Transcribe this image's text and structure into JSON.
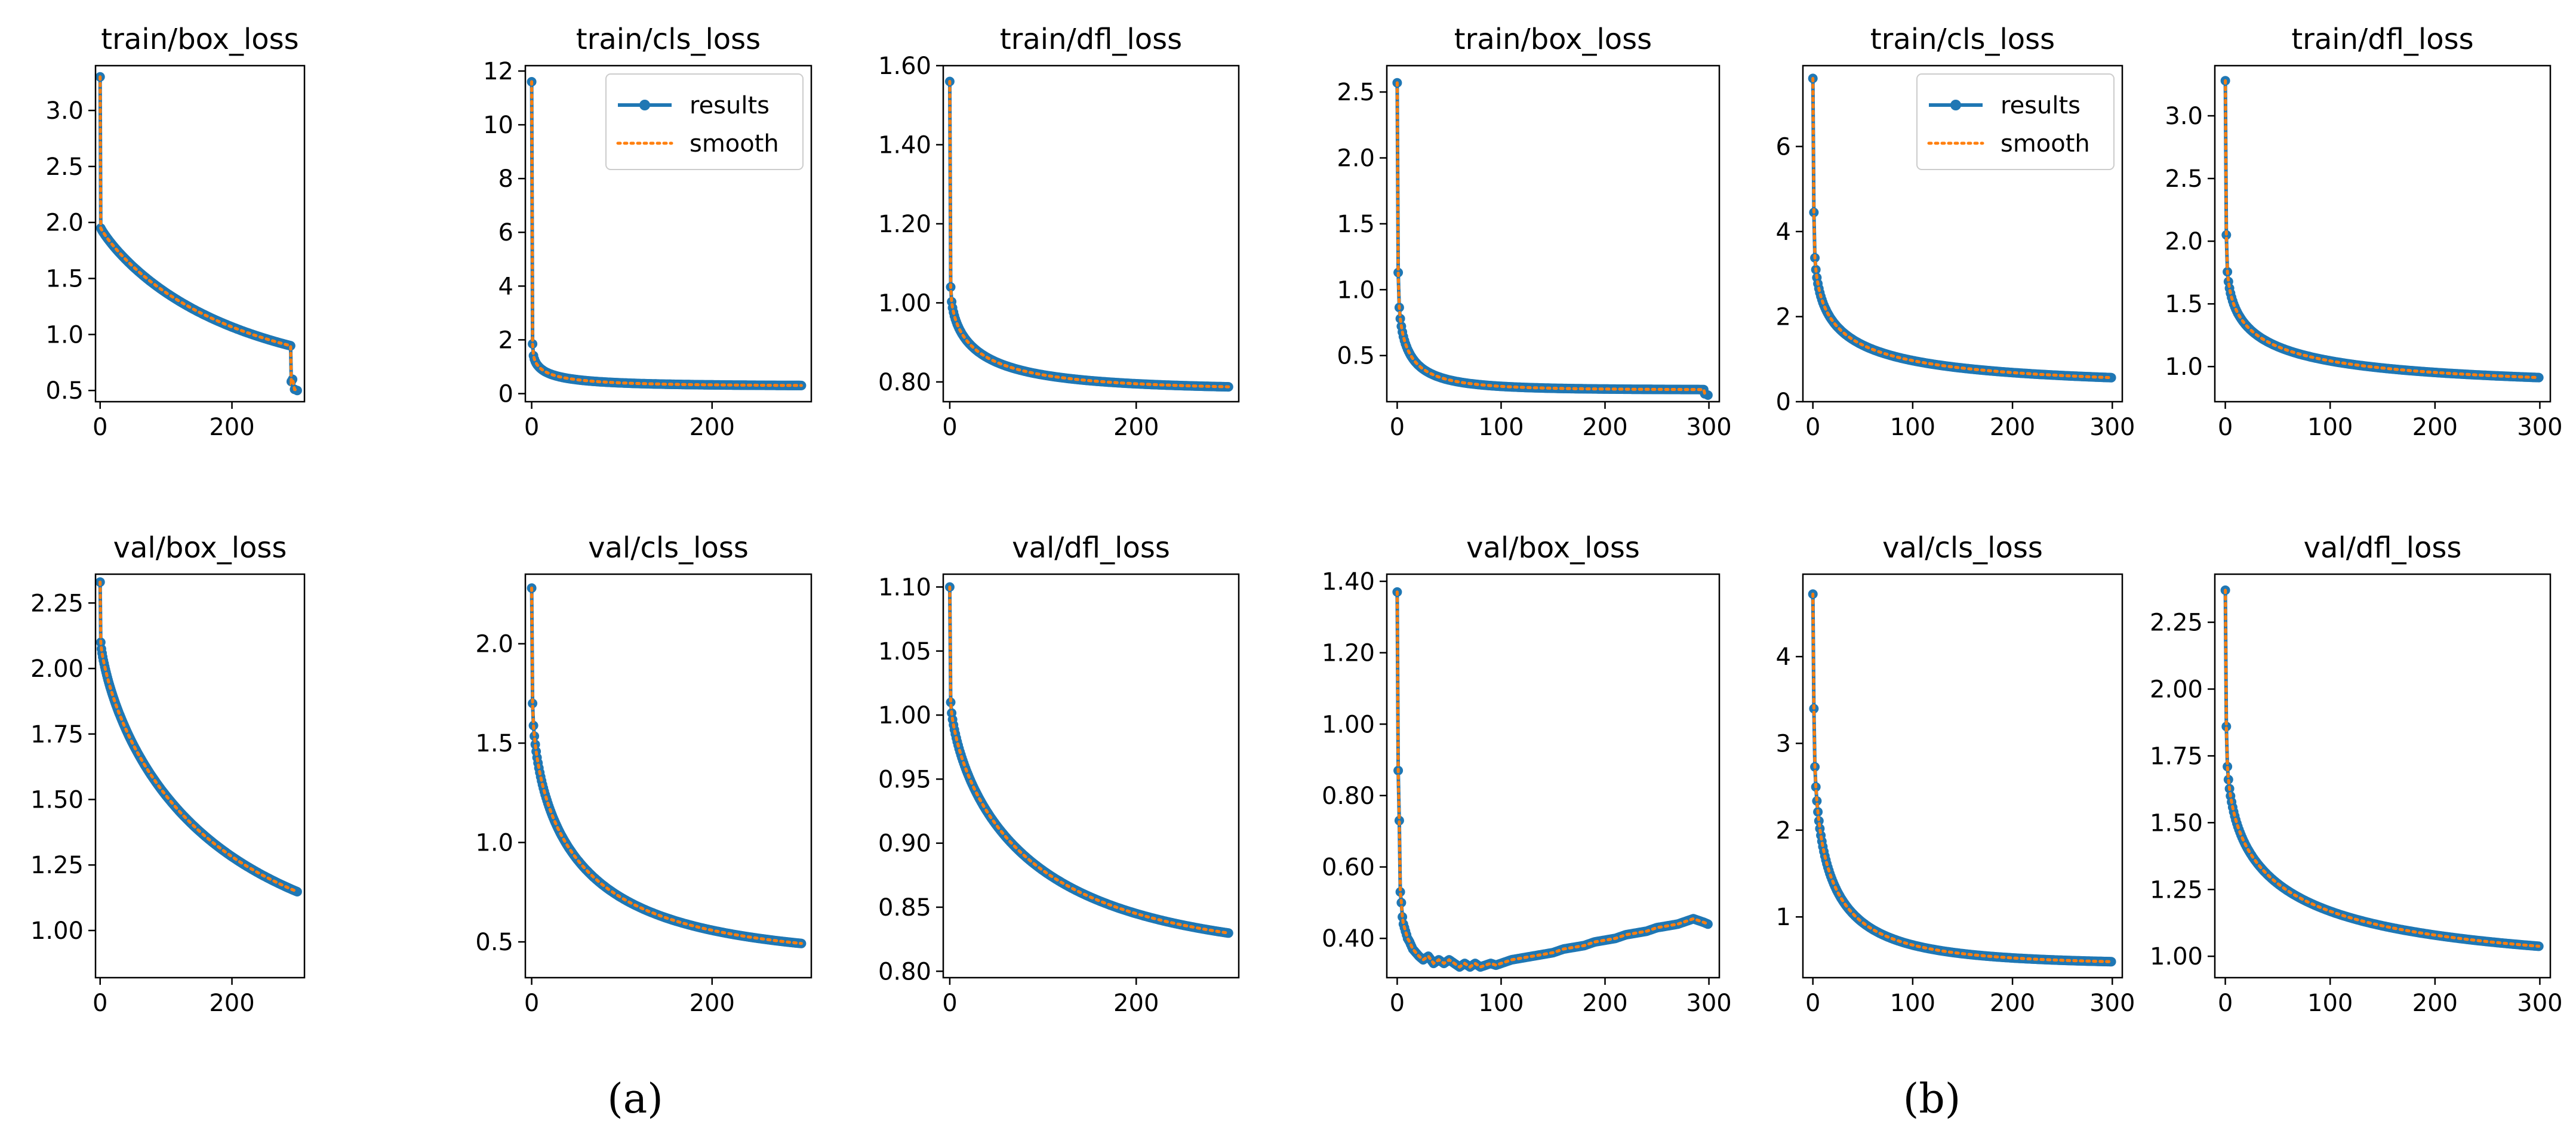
{
  "colors": {
    "results": "#1f77b4",
    "smooth": "#ff7f0e",
    "axis": "#000000",
    "background": "#ffffff"
  },
  "legend_labels": {
    "results": "results",
    "smooth": "smooth"
  },
  "captions": [
    "(a)",
    "(b)"
  ],
  "chart_data": [
    {
      "id": "a-train-box",
      "type": "line",
      "title": "train/box_loss",
      "legend": null,
      "xlim": [
        -7,
        310
      ],
      "xticks": [
        0,
        200
      ],
      "ylim": [
        0.4,
        3.4
      ],
      "yticks": [
        0.5,
        1.0,
        1.5,
        2.0,
        2.5,
        3.0
      ],
      "curve": {
        "start": 3.3,
        "p0": 1.95,
        "end": 0.55,
        "tau": 200,
        "alpha": 0.9,
        "n": 300
      },
      "tail": [
        [
          290,
          0.58
        ],
        [
          292,
          0.6
        ],
        [
          295,
          0.51
        ],
        [
          299,
          0.5
        ]
      ]
    },
    {
      "id": "a-train-cls",
      "type": "line",
      "title": "train/cls_loss",
      "legend": "top-right",
      "xlim": [
        -7,
        310
      ],
      "xticks": [
        0,
        200
      ],
      "ylim": [
        -0.3,
        12.2
      ],
      "yticks": [
        0,
        2,
        4,
        6,
        8,
        10,
        12
      ],
      "curve": {
        "start": 11.6,
        "p0": 1.85,
        "end": 0.28,
        "tau": 12,
        "alpha": 0.45,
        "n": 300
      }
    },
    {
      "id": "a-train-dfl",
      "type": "line",
      "title": "train/dfl_loss",
      "legend": null,
      "xlim": [
        -7,
        310
      ],
      "xticks": [
        0,
        200
      ],
      "ylim": [
        0.75,
        1.6
      ],
      "yticks": [
        0.8,
        1.0,
        1.2,
        1.4,
        1.6
      ],
      "curve": {
        "start": 1.56,
        "p0": 1.04,
        "end": 0.78,
        "tau": 30,
        "alpha": 0.55,
        "n": 300
      }
    },
    {
      "id": "a-val-box",
      "type": "line",
      "title": "val/box_loss",
      "legend": null,
      "xlim": [
        -7,
        310
      ],
      "xticks": [
        0,
        200
      ],
      "ylim": [
        0.82,
        2.36
      ],
      "yticks": [
        1.0,
        1.25,
        1.5,
        1.75,
        2.0,
        2.25
      ],
      "curve": {
        "start": 2.33,
        "p0": 2.1,
        "end": 0.86,
        "tau": 180,
        "alpha": 0.75,
        "n": 300
      }
    },
    {
      "id": "a-val-cls",
      "type": "line",
      "title": "val/cls_loss",
      "legend": null,
      "xlim": [
        -7,
        310
      ],
      "xticks": [
        0,
        200
      ],
      "ylim": [
        0.32,
        2.35
      ],
      "yticks": [
        0.5,
        1.0,
        1.5,
        2.0
      ],
      "curve": {
        "start": 2.28,
        "p0": 1.7,
        "end": 0.41,
        "tau": 55,
        "alpha": 0.6,
        "n": 300
      }
    },
    {
      "id": "a-val-dfl",
      "type": "line",
      "title": "val/dfl_loss",
      "legend": null,
      "xlim": [
        -7,
        310
      ],
      "xticks": [
        0,
        200
      ],
      "ylim": [
        0.795,
        1.11
      ],
      "yticks": [
        0.8,
        0.85,
        0.9,
        0.95,
        1.0,
        1.05,
        1.1
      ],
      "curve": {
        "start": 1.1,
        "p0": 1.01,
        "end": 0.81,
        "tau": 90,
        "alpha": 0.7,
        "n": 300
      }
    },
    {
      "id": "b-train-box",
      "type": "line",
      "title": "train/box_loss",
      "legend": null,
      "xlim": [
        -10,
        310
      ],
      "xticks": [
        0,
        100,
        200,
        300
      ],
      "ylim": [
        0.15,
        2.7
      ],
      "yticks": [
        0.5,
        1.0,
        1.5,
        2.0,
        2.5
      ],
      "curve": {
        "start": 2.57,
        "p0": 1.13,
        "end": 0.24,
        "tau": 8,
        "alpha": 0.5,
        "n": 300
      },
      "tail": [
        [
          296,
          0.21
        ],
        [
          299,
          0.2
        ]
      ]
    },
    {
      "id": "b-train-cls",
      "type": "line",
      "title": "train/cls_loss",
      "legend": "top-right",
      "xlim": [
        -10,
        310
      ],
      "xticks": [
        0,
        100,
        200,
        300
      ],
      "ylim": [
        0,
        7.9
      ],
      "yticks": [
        0,
        2,
        4,
        6
      ],
      "curve": {
        "start": 7.6,
        "p0": 4.45,
        "end": 0.35,
        "tau": 20,
        "alpha": 0.4,
        "n": 300
      }
    },
    {
      "id": "b-train-dfl",
      "type": "line",
      "title": "train/dfl_loss",
      "legend": null,
      "xlim": [
        -10,
        310
      ],
      "xticks": [
        0,
        100,
        200,
        300
      ],
      "ylim": [
        0.72,
        3.4
      ],
      "yticks": [
        1.0,
        1.5,
        2.0,
        2.5,
        3.0
      ],
      "curve": {
        "start": 3.28,
        "p0": 2.05,
        "end": 0.83,
        "tau": 25,
        "alpha": 0.4,
        "n": 300
      }
    },
    {
      "id": "b-val-box",
      "type": "line",
      "title": "val/box_loss",
      "legend": null,
      "xlim": [
        -10,
        310
      ],
      "xticks": [
        0,
        100,
        200,
        300
      ],
      "ylim": [
        0.29,
        1.42
      ],
      "yticks": [
        0.4,
        0.6,
        0.8,
        1.0,
        1.2,
        1.4
      ],
      "points": [
        [
          0,
          1.37
        ],
        [
          1,
          0.87
        ],
        [
          2,
          0.73
        ],
        [
          3,
          0.53
        ],
        [
          4,
          0.5
        ],
        [
          5,
          0.46
        ],
        [
          6,
          0.44
        ],
        [
          8,
          0.42
        ],
        [
          10,
          0.4
        ],
        [
          12,
          0.39
        ],
        [
          15,
          0.37
        ],
        [
          18,
          0.36
        ],
        [
          21,
          0.35
        ],
        [
          25,
          0.34
        ],
        [
          30,
          0.35
        ],
        [
          35,
          0.33
        ],
        [
          40,
          0.34
        ],
        [
          45,
          0.33
        ],
        [
          50,
          0.34
        ],
        [
          55,
          0.33
        ],
        [
          60,
          0.32
        ],
        [
          65,
          0.33
        ],
        [
          70,
          0.32
        ],
        [
          75,
          0.33
        ],
        [
          80,
          0.32
        ],
        [
          85,
          0.325
        ],
        [
          90,
          0.33
        ],
        [
          95,
          0.325
        ],
        [
          100,
          0.33
        ],
        [
          110,
          0.34
        ],
        [
          120,
          0.345
        ],
        [
          130,
          0.35
        ],
        [
          140,
          0.355
        ],
        [
          150,
          0.36
        ],
        [
          160,
          0.37
        ],
        [
          170,
          0.375
        ],
        [
          180,
          0.38
        ],
        [
          190,
          0.39
        ],
        [
          200,
          0.395
        ],
        [
          210,
          0.4
        ],
        [
          220,
          0.41
        ],
        [
          230,
          0.415
        ],
        [
          240,
          0.42
        ],
        [
          250,
          0.43
        ],
        [
          260,
          0.435
        ],
        [
          270,
          0.44
        ],
        [
          280,
          0.45
        ],
        [
          285,
          0.455
        ],
        [
          290,
          0.45
        ],
        [
          295,
          0.445
        ],
        [
          299,
          0.44
        ]
      ]
    },
    {
      "id": "b-val-cls",
      "type": "line",
      "title": "val/cls_loss",
      "legend": null,
      "xlim": [
        -10,
        310
      ],
      "xticks": [
        0,
        100,
        200,
        300
      ],
      "ylim": [
        0.3,
        4.95
      ],
      "yticks": [
        1,
        2,
        3,
        4
      ],
      "curve": {
        "start": 4.72,
        "p0": 3.4,
        "end": 0.45,
        "tau": 15,
        "alpha": 0.5,
        "n": 300
      }
    },
    {
      "id": "b-val-dfl",
      "type": "line",
      "title": "val/dfl_loss",
      "legend": null,
      "xlim": [
        -10,
        310
      ],
      "xticks": [
        0,
        100,
        200,
        300
      ],
      "ylim": [
        0.92,
        2.43
      ],
      "yticks": [
        1.0,
        1.25,
        1.5,
        1.75,
        2.0,
        2.25
      ],
      "curve": {
        "start": 2.37,
        "p0": 1.86,
        "end": 0.95,
        "tau": 45,
        "alpha": 0.45,
        "n": 300
      }
    }
  ]
}
